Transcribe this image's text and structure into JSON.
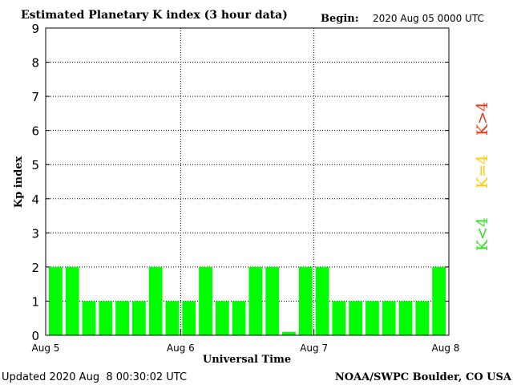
{
  "chart_data": {
    "type": "bar",
    "title": "Estimated Planetary K index (3 hour data)",
    "begin_label": "Begin:",
    "begin_value": "2020 Aug 05 0000 UTC",
    "xlabel": "Universal Time",
    "ylabel": "Kp index",
    "ylim": [
      0,
      9
    ],
    "y_ticks": [
      "0",
      "1",
      "2",
      "3",
      "4",
      "5",
      "6",
      "7",
      "8",
      "9"
    ],
    "x_ticks": [
      "Aug 5",
      "Aug 6",
      "Aug 7",
      "Aug 8"
    ],
    "grid": true,
    "values": [
      2,
      2,
      1,
      1,
      1,
      1,
      2,
      1,
      1,
      2,
      1,
      1,
      2,
      2,
      0.1,
      2,
      2,
      1,
      1,
      1,
      1,
      1,
      1,
      2
    ],
    "bar_color": "#00ff00",
    "legend": [
      {
        "label": "K<4",
        "color": "#33dd22"
      },
      {
        "label": "K=4",
        "color": "#ffcc00"
      },
      {
        "label": "K>4",
        "color": "#ee3311"
      }
    ]
  },
  "footer": {
    "updated": "Updated 2020 Aug  8 00:30:02 UTC",
    "source": "NOAA/SWPC Boulder, CO USA"
  }
}
